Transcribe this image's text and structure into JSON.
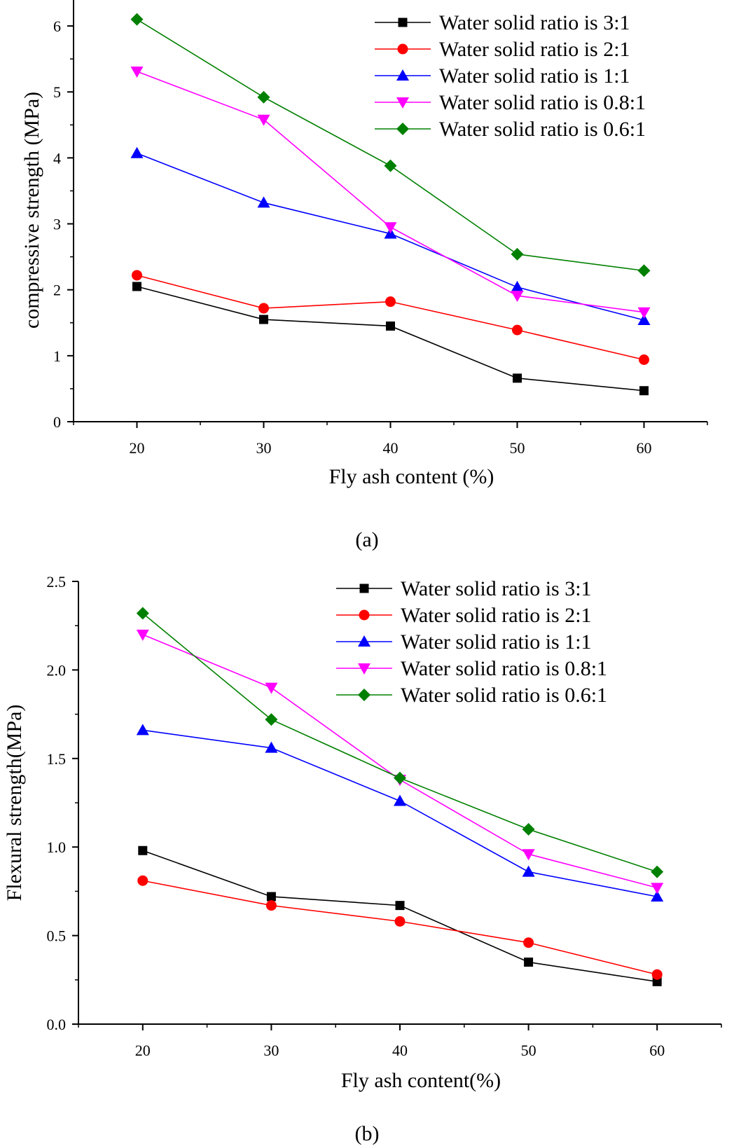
{
  "chart_data": [
    {
      "type": "line",
      "panel": "(a)",
      "xlabel": "Fly ash content (%)",
      "ylabel": "compressive strength (MPa)",
      "xlim": [
        15,
        65
      ],
      "ylim": [
        0,
        6.5
      ],
      "xticks": [
        20,
        30,
        40,
        50,
        60
      ],
      "yticks": [
        0,
        1,
        2,
        3,
        4,
        5,
        6
      ],
      "ytick_format": 0,
      "legend_position": "top-right",
      "x": [
        20,
        30,
        40,
        50,
        60
      ],
      "series": [
        {
          "name": "Water solid ratio is 3:1",
          "color": "#000000",
          "marker": "square",
          "values": [
            2.05,
            1.55,
            1.45,
            0.66,
            0.47
          ]
        },
        {
          "name": "Water solid ratio is 2:1",
          "color": "#ff0000",
          "marker": "circle",
          "values": [
            2.22,
            1.72,
            1.82,
            1.39,
            0.94
          ]
        },
        {
          "name": "Water solid ratio is 1:1",
          "color": "#0000ff",
          "marker": "triangle-up",
          "values": [
            4.07,
            3.32,
            2.85,
            2.04,
            1.54
          ]
        },
        {
          "name": "Water solid ratio is 0.8:1",
          "color": "#ff00ff",
          "marker": "triangle-down",
          "values": [
            5.31,
            4.58,
            2.95,
            1.91,
            1.66
          ]
        },
        {
          "name": "Water solid ratio is 0.6:1",
          "color": "#008000",
          "marker": "diamond",
          "values": [
            6.1,
            4.92,
            3.88,
            2.54,
            2.29
          ]
        }
      ]
    },
    {
      "type": "line",
      "panel": "(b)",
      "xlabel": "Fly ash content(%)",
      "ylabel": "Flexural strength(MPa)",
      "xlim": [
        15,
        65
      ],
      "ylim": [
        0,
        2.5
      ],
      "xticks": [
        20,
        30,
        40,
        50,
        60
      ],
      "yticks": [
        0,
        0.5,
        1.0,
        1.5,
        2.0,
        2.5
      ],
      "ytick_format": 1,
      "legend_position": "top-right",
      "x": [
        20,
        30,
        40,
        50,
        60
      ],
      "series": [
        {
          "name": "Water solid ratio is 3:1",
          "color": "#000000",
          "marker": "square",
          "values": [
            0.98,
            0.72,
            0.67,
            0.35,
            0.24
          ]
        },
        {
          "name": "Water solid ratio is 2:1",
          "color": "#ff0000",
          "marker": "circle",
          "values": [
            0.81,
            0.67,
            0.58,
            0.46,
            0.28
          ]
        },
        {
          "name": "Water solid ratio is 1:1",
          "color": "#0000ff",
          "marker": "triangle-up",
          "values": [
            1.66,
            1.56,
            1.26,
            0.86,
            0.72
          ]
        },
        {
          "name": "Water solid ratio is 0.8:1",
          "color": "#ff00ff",
          "marker": "triangle-down",
          "values": [
            2.2,
            1.9,
            1.38,
            0.96,
            0.77
          ]
        },
        {
          "name": "Water solid ratio is 0.6:1",
          "color": "#008000",
          "marker": "diamond",
          "values": [
            2.32,
            1.72,
            1.39,
            1.1,
            0.86
          ]
        }
      ]
    }
  ]
}
